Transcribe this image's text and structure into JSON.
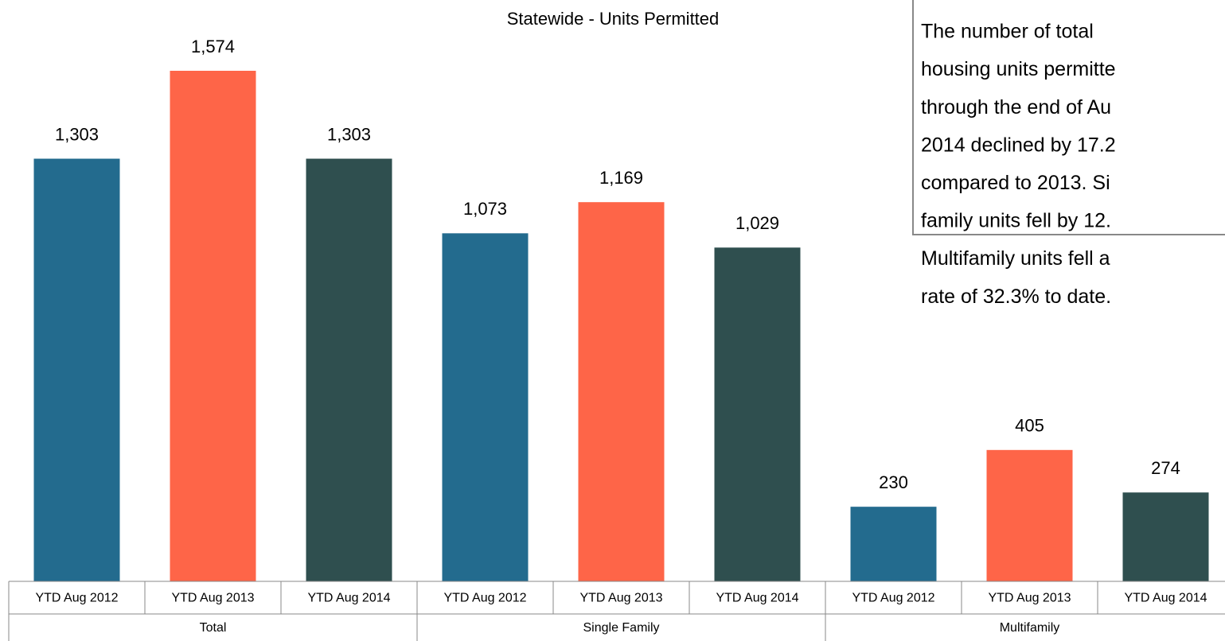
{
  "chart_data": {
    "type": "bar",
    "title": "Statewide - Units Permitted",
    "groups": [
      "Total",
      "Single Family",
      "Multifamily"
    ],
    "categories": [
      "YTD Aug 2012",
      "YTD Aug 2013",
      "YTD Aug 2014",
      "YTD Aug 2012",
      "YTD Aug 2013",
      "YTD Aug 2014",
      "YTD Aug 2012",
      "YTD Aug 2013",
      "YTD Aug 2014"
    ],
    "values": [
      1303,
      1574,
      1303,
      1073,
      1169,
      1029,
      230,
      405,
      274
    ],
    "value_labels": [
      "1,303",
      "1,574",
      "1,303",
      "1,073",
      "1,169",
      "1,029",
      "230",
      "405",
      "274"
    ],
    "colors": [
      "#236b8e",
      "#fe6548",
      "#2f4f4f",
      "#236b8e",
      "#fe6548",
      "#2f4f4f",
      "#236b8e",
      "#fe6548",
      "#2f4f4f"
    ],
    "annotation": [
      "The number of total",
      "housing units permitte",
      "through the end of Au",
      "2014 declined by 17.2",
      "compared to 2013.  Si",
      "family units fell by 12.",
      "Multifamily units fell a",
      "rate of 32.3% to date."
    ]
  }
}
